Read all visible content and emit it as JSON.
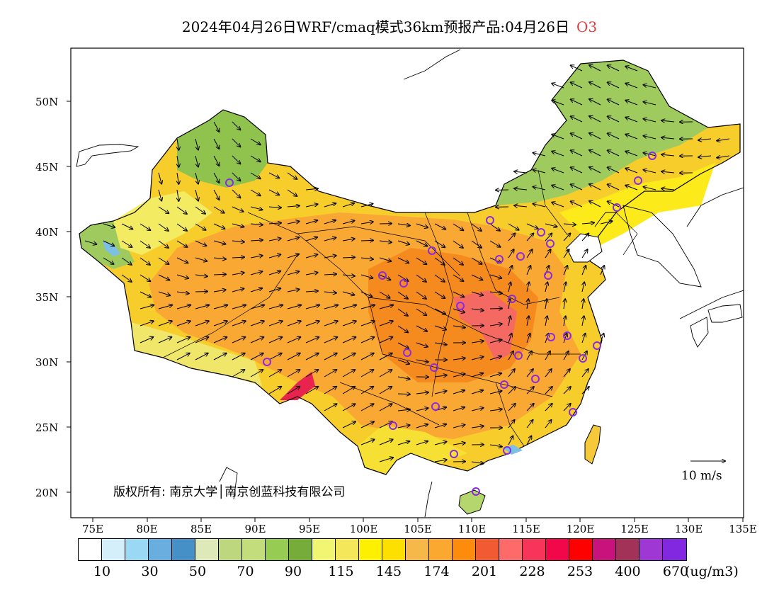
{
  "title": {
    "main": "2024年04月26日WRF/cmaq模式36km预报产品:04月26日",
    "variable": "O3",
    "variable_color": "#e03c3c"
  },
  "axes": {
    "lat_labels": [
      "50N",
      "45N",
      "40N",
      "35N",
      "30N",
      "25N",
      "20N"
    ],
    "lon_labels": [
      "75E",
      "80E",
      "85E",
      "90E",
      "95E",
      "100E",
      "105E",
      "110E",
      "115E",
      "120E",
      "125E",
      "130E",
      "135E"
    ]
  },
  "colorbar": {
    "colors": [
      "#ffffff",
      "#d4eefa",
      "#9ad8f3",
      "#6aaee0",
      "#4690c8",
      "#dde9b8",
      "#bcd77e",
      "#c3dc7c",
      "#97cc52",
      "#76ad3a",
      "#f2f571",
      "#f5e75a",
      "#fdf000",
      "#fde000",
      "#f7b84a",
      "#fba830",
      "#fd8b0c",
      "#f15a32",
      "#fd6a6a",
      "#f7345a",
      "#f1074a",
      "#fd0000",
      "#c7137b",
      "#a33259",
      "#9f37d4",
      "#8228e0"
    ],
    "labels": [
      "10",
      "30",
      "50",
      "70",
      "90",
      "115",
      "145",
      "174",
      "201",
      "228",
      "253",
      "400",
      "670"
    ],
    "unit": "(ug/m3)"
  },
  "annotations": {
    "copyright": "版权所有: 南京大学│南京创蓝科技有限公司",
    "wind_reference": "10 m/s"
  }
}
